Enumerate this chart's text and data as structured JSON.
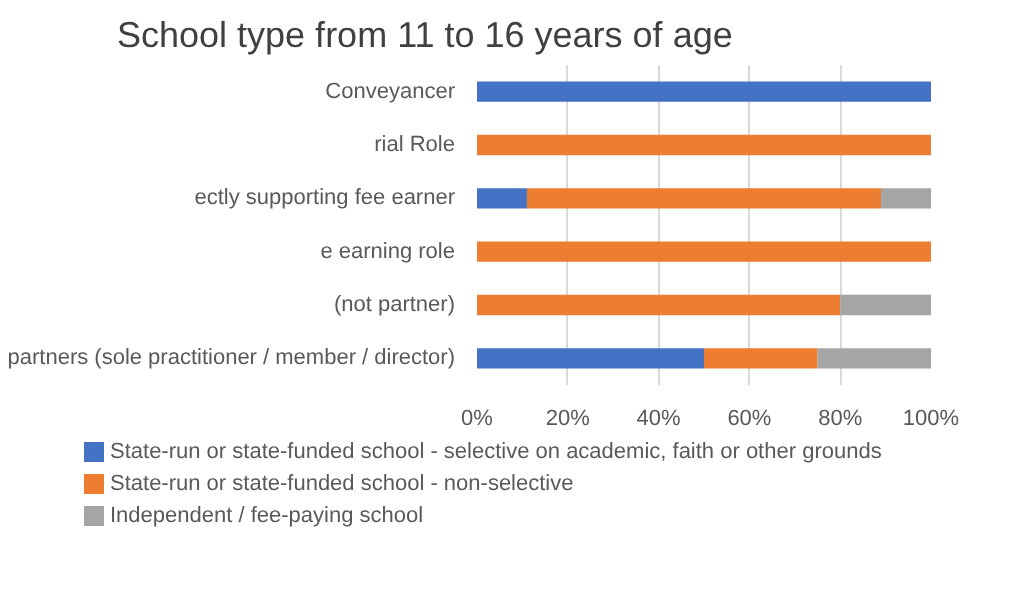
{
  "chart_data": {
    "type": "bar",
    "orientation": "horizontal",
    "stacked": true,
    "title": "School type from 11 to 16 years of age",
    "categories": [
      "Conveyancer",
      "rial Role",
      "ectly supporting fee earner",
      "e earning role",
      "(not partner)",
      "partners (sole practitioner / member / director)"
    ],
    "series": [
      {
        "name": "State-run or state-funded school - selective on academic, faith or other grounds",
        "color": "#4472c4",
        "values": [
          100,
          0,
          11,
          0,
          0,
          50
        ]
      },
      {
        "name": "State-run or state-funded school - non-selective",
        "color": "#ed7d31",
        "values": [
          0,
          100,
          78,
          100,
          80,
          25
        ]
      },
      {
        "name": "Independent / fee-paying school",
        "color": "#a5a5a5",
        "values": [
          0,
          0,
          11,
          0,
          20,
          25
        ]
      }
    ],
    "xlim": [
      0,
      100
    ],
    "xticks": [
      {
        "value": 0,
        "label": "0%"
      },
      {
        "value": 20,
        "label": "20%"
      },
      {
        "value": 40,
        "label": "40%"
      },
      {
        "value": 60,
        "label": "60%"
      },
      {
        "value": 80,
        "label": "80%"
      },
      {
        "value": 100,
        "label": "100%"
      }
    ],
    "grid": "x",
    "legend": "bottom left"
  }
}
